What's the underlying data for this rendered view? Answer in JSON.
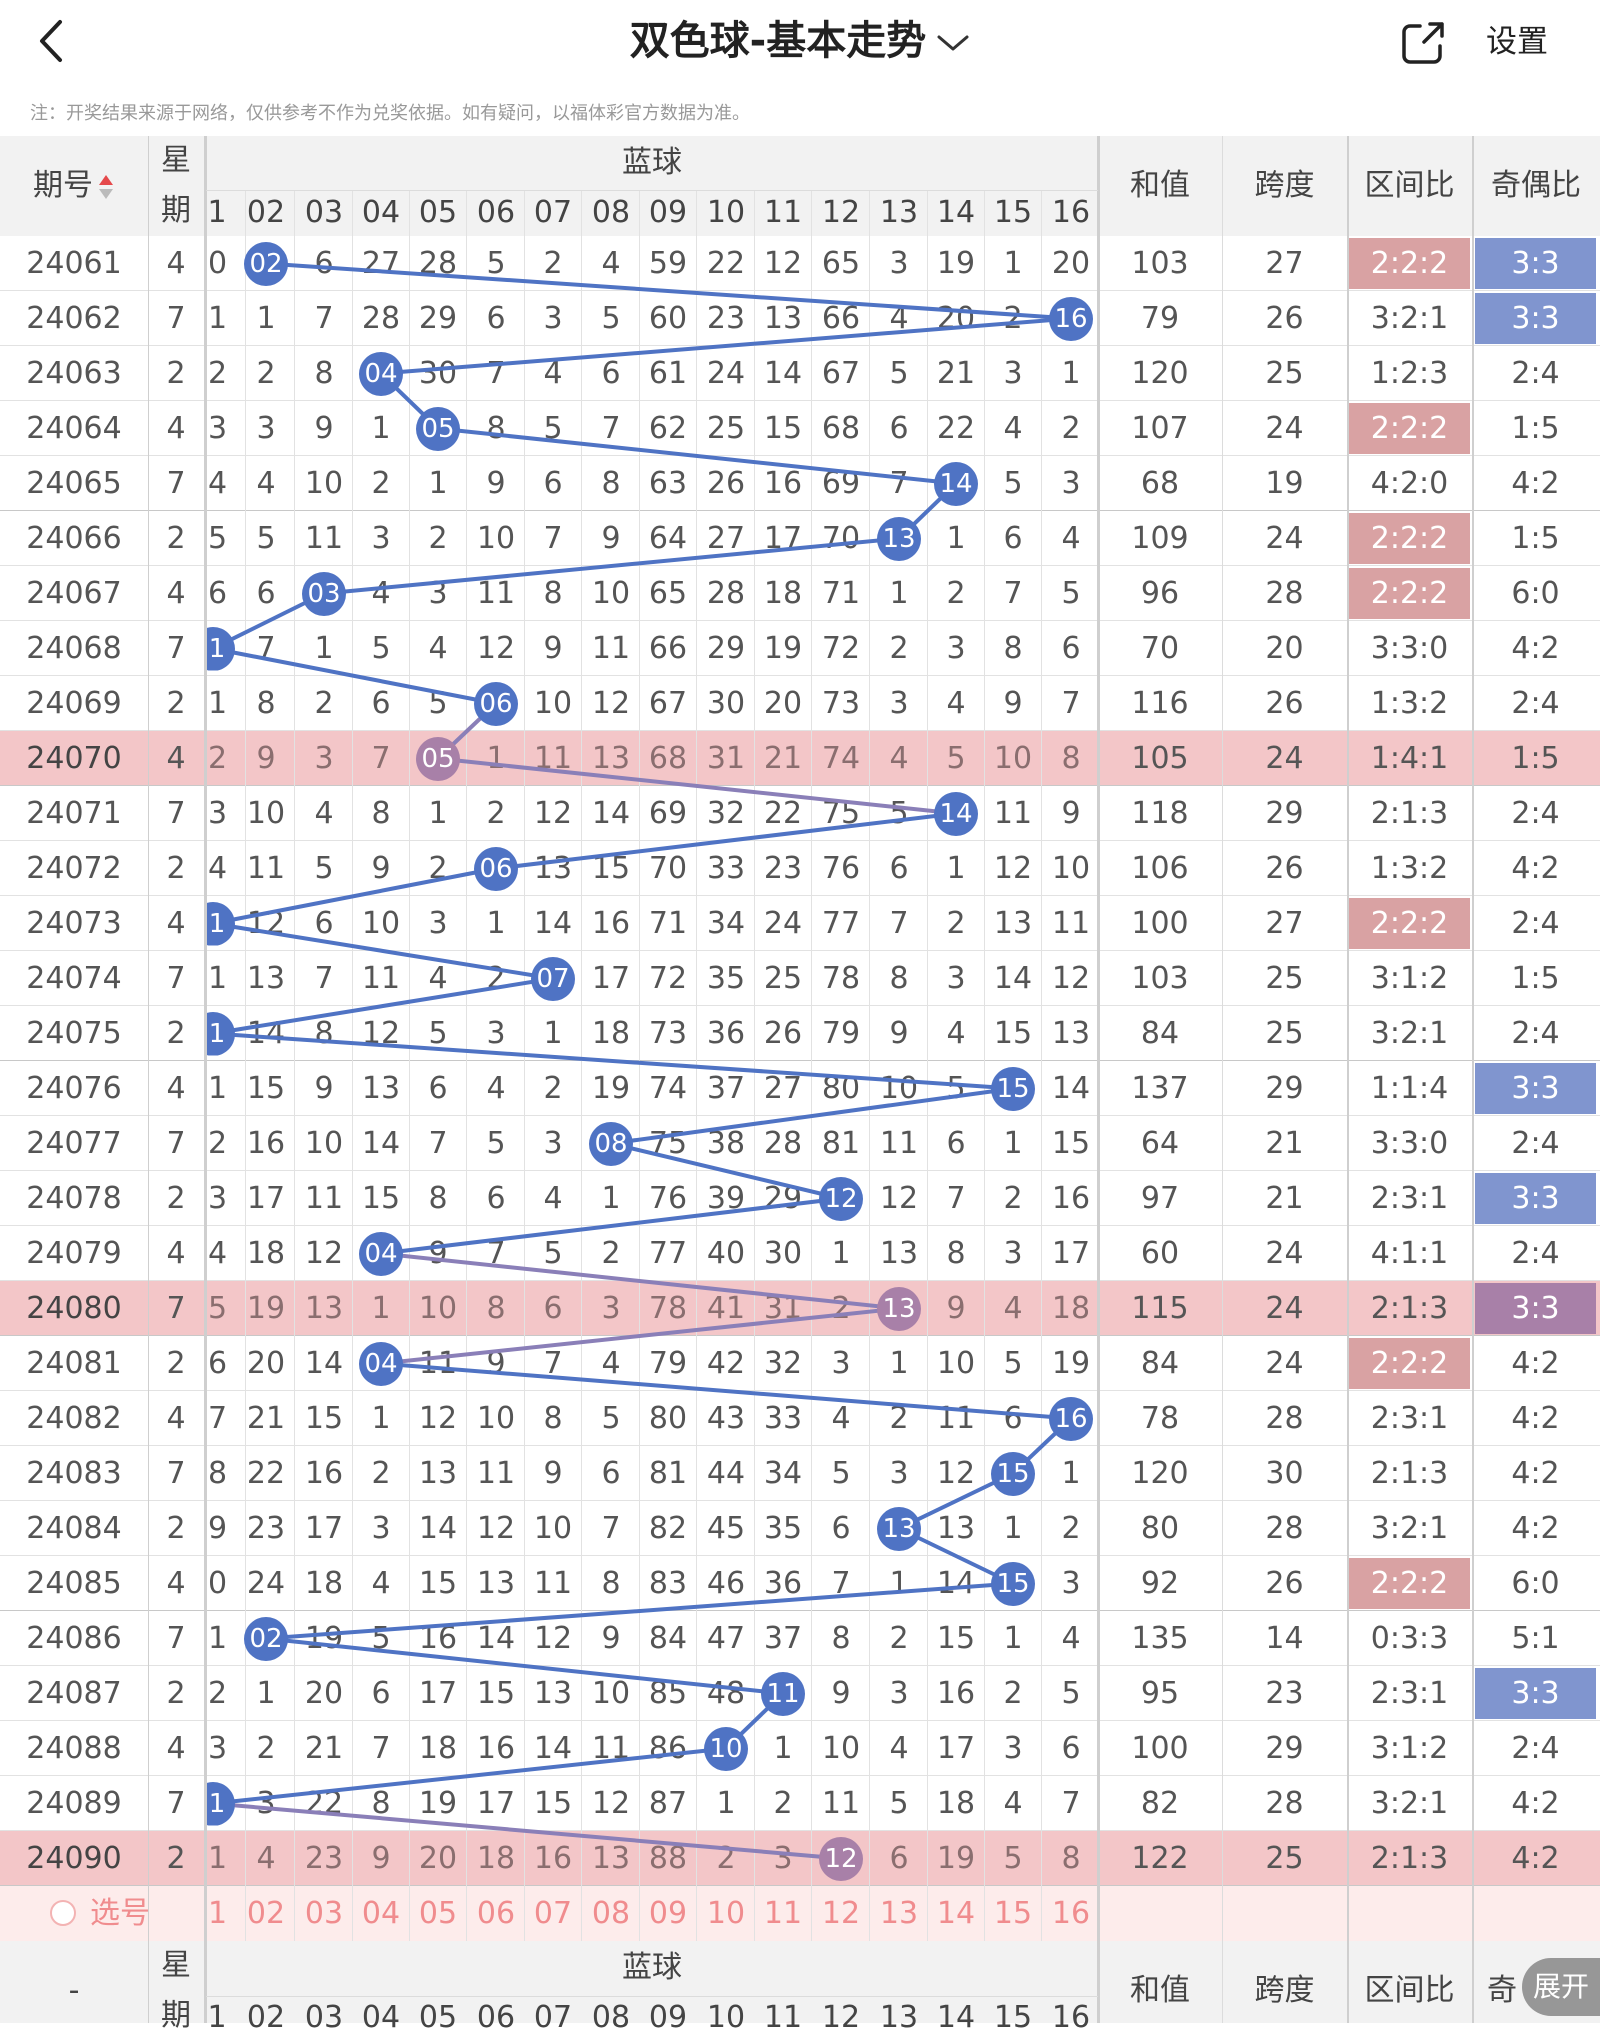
{
  "header": {
    "title": "双色球-基本走势",
    "settings_label": "设置",
    "icons": [
      "back-icon",
      "chevron-down-icon",
      "share-icon"
    ]
  },
  "note": "注：开奖结果来源于网络，仅供参考不作为兑奖依据。如有疑问，以福体彩官方数据为准。",
  "table": {
    "headers": {
      "issue": "期号",
      "week_top": "星",
      "week_bottom": "期",
      "blue": "蓝球",
      "sum": "和值",
      "span": "跨度",
      "zone": "区间比",
      "odd_even": "奇偶比",
      "select": "选号",
      "footer_issue": "-",
      "footer_oe": "奇"
    },
    "columns": [
      "1",
      "02",
      "03",
      "04",
      "05",
      "06",
      "07",
      "08",
      "09",
      "10",
      "11",
      "12",
      "13",
      "14",
      "15",
      "16"
    ],
    "rows": [
      {
        "issue": "24061",
        "week": "4",
        "cells": [
          "0",
          "02",
          "6",
          "27",
          "28",
          "5",
          "2",
          "4",
          "59",
          "22",
          "12",
          "65",
          "3",
          "19",
          "1",
          "20"
        ],
        "ball": 2,
        "sum": "103",
        "span": "27",
        "zone": "2:2:2",
        "oe": "3:3"
      },
      {
        "issue": "24062",
        "week": "7",
        "cells": [
          "1",
          "1",
          "7",
          "28",
          "29",
          "6",
          "3",
          "5",
          "60",
          "23",
          "13",
          "66",
          "4",
          "20",
          "2",
          "16"
        ],
        "ball": 16,
        "sum": "79",
        "span": "26",
        "zone": "3:2:1",
        "oe": "3:3"
      },
      {
        "issue": "24063",
        "week": "2",
        "cells": [
          "2",
          "2",
          "8",
          "04",
          "30",
          "7",
          "4",
          "6",
          "61",
          "24",
          "14",
          "67",
          "5",
          "21",
          "3",
          "1"
        ],
        "ball": 4,
        "sum": "120",
        "span": "25",
        "zone": "1:2:3",
        "oe": "2:4"
      },
      {
        "issue": "24064",
        "week": "4",
        "cells": [
          "3",
          "3",
          "9",
          "1",
          "05",
          "8",
          "5",
          "7",
          "62",
          "25",
          "15",
          "68",
          "6",
          "22",
          "4",
          "2"
        ],
        "ball": 5,
        "sum": "107",
        "span": "24",
        "zone": "2:2:2",
        "oe": "1:5"
      },
      {
        "issue": "24065",
        "week": "7",
        "cells": [
          "4",
          "4",
          "10",
          "2",
          "1",
          "9",
          "6",
          "8",
          "63",
          "26",
          "16",
          "69",
          "7",
          "14",
          "5",
          "3"
        ],
        "ball": 14,
        "sum": "68",
        "span": "19",
        "zone": "4:2:0",
        "oe": "4:2"
      },
      {
        "issue": "24066",
        "week": "2",
        "cells": [
          "5",
          "5",
          "11",
          "3",
          "2",
          "10",
          "7",
          "9",
          "64",
          "27",
          "17",
          "70",
          "13",
          "1",
          "6",
          "4"
        ],
        "ball": 13,
        "sum": "109",
        "span": "24",
        "zone": "2:2:2",
        "oe": "1:5"
      },
      {
        "issue": "24067",
        "week": "4",
        "cells": [
          "6",
          "6",
          "03",
          "4",
          "3",
          "11",
          "8",
          "10",
          "65",
          "28",
          "18",
          "71",
          "1",
          "2",
          "7",
          "5"
        ],
        "ball": 3,
        "sum": "96",
        "span": "28",
        "zone": "2:2:2",
        "oe": "6:0"
      },
      {
        "issue": "24068",
        "week": "7",
        "cells": [
          "1",
          "7",
          "1",
          "5",
          "4",
          "12",
          "9",
          "11",
          "66",
          "29",
          "19",
          "72",
          "2",
          "3",
          "8",
          "6"
        ],
        "ball": 1,
        "sum": "70",
        "span": "20",
        "zone": "3:3:0",
        "oe": "4:2"
      },
      {
        "issue": "24069",
        "week": "2",
        "cells": [
          "1",
          "8",
          "2",
          "6",
          "5",
          "06",
          "10",
          "12",
          "67",
          "30",
          "20",
          "73",
          "3",
          "4",
          "9",
          "7"
        ],
        "ball": 6,
        "sum": "116",
        "span": "26",
        "zone": "1:3:2",
        "oe": "2:4"
      },
      {
        "issue": "24070",
        "week": "4",
        "cells": [
          "2",
          "9",
          "3",
          "7",
          "05",
          "1",
          "11",
          "13",
          "68",
          "31",
          "21",
          "74",
          "4",
          "5",
          "10",
          "8"
        ],
        "ball": 5,
        "sum": "105",
        "span": "24",
        "zone": "1:4:1",
        "oe": "1:5",
        "hl": true
      },
      {
        "issue": "24071",
        "week": "7",
        "cells": [
          "3",
          "10",
          "4",
          "8",
          "1",
          "2",
          "12",
          "14",
          "69",
          "32",
          "22",
          "75",
          "5",
          "14",
          "11",
          "9"
        ],
        "ball": 14,
        "sum": "118",
        "span": "29",
        "zone": "2:1:3",
        "oe": "2:4"
      },
      {
        "issue": "24072",
        "week": "2",
        "cells": [
          "4",
          "11",
          "5",
          "9",
          "2",
          "06",
          "13",
          "15",
          "70",
          "33",
          "23",
          "76",
          "6",
          "1",
          "12",
          "10"
        ],
        "ball": 6,
        "sum": "106",
        "span": "26",
        "zone": "1:3:2",
        "oe": "4:2"
      },
      {
        "issue": "24073",
        "week": "4",
        "cells": [
          "1",
          "12",
          "6",
          "10",
          "3",
          "1",
          "14",
          "16",
          "71",
          "34",
          "24",
          "77",
          "7",
          "2",
          "13",
          "11"
        ],
        "ball": 1,
        "sum": "100",
        "span": "27",
        "zone": "2:2:2",
        "oe": "2:4"
      },
      {
        "issue": "24074",
        "week": "7",
        "cells": [
          "1",
          "13",
          "7",
          "11",
          "4",
          "2",
          "07",
          "17",
          "72",
          "35",
          "25",
          "78",
          "8",
          "3",
          "14",
          "12"
        ],
        "ball": 7,
        "sum": "103",
        "span": "25",
        "zone": "3:1:2",
        "oe": "1:5"
      },
      {
        "issue": "24075",
        "week": "2",
        "cells": [
          "1",
          "14",
          "8",
          "12",
          "5",
          "3",
          "1",
          "18",
          "73",
          "36",
          "26",
          "79",
          "9",
          "4",
          "15",
          "13"
        ],
        "ball": 1,
        "sum": "84",
        "span": "25",
        "zone": "3:2:1",
        "oe": "2:4"
      },
      {
        "issue": "24076",
        "week": "4",
        "cells": [
          "1",
          "15",
          "9",
          "13",
          "6",
          "4",
          "2",
          "19",
          "74",
          "37",
          "27",
          "80",
          "10",
          "5",
          "15",
          "14"
        ],
        "ball": 15,
        "sum": "137",
        "span": "29",
        "zone": "1:1:4",
        "oe": "3:3"
      },
      {
        "issue": "24077",
        "week": "7",
        "cells": [
          "2",
          "16",
          "10",
          "14",
          "7",
          "5",
          "3",
          "08",
          "75",
          "38",
          "28",
          "81",
          "11",
          "6",
          "1",
          "15"
        ],
        "ball": 8,
        "sum": "64",
        "span": "21",
        "zone": "3:3:0",
        "oe": "2:4"
      },
      {
        "issue": "24078",
        "week": "2",
        "cells": [
          "3",
          "17",
          "11",
          "15",
          "8",
          "6",
          "4",
          "1",
          "76",
          "39",
          "29",
          "12",
          "12",
          "7",
          "2",
          "16"
        ],
        "ball": 12,
        "sum": "97",
        "span": "21",
        "zone": "2:3:1",
        "oe": "3:3"
      },
      {
        "issue": "24079",
        "week": "4",
        "cells": [
          "4",
          "18",
          "12",
          "04",
          "9",
          "7",
          "5",
          "2",
          "77",
          "40",
          "30",
          "1",
          "13",
          "8",
          "3",
          "17"
        ],
        "ball": 4,
        "sum": "60",
        "span": "24",
        "zone": "4:1:1",
        "oe": "2:4"
      },
      {
        "issue": "24080",
        "week": "7",
        "cells": [
          "5",
          "19",
          "13",
          "1",
          "10",
          "8",
          "6",
          "3",
          "78",
          "41",
          "31",
          "2",
          "13",
          "9",
          "4",
          "18"
        ],
        "ball": 13,
        "sum": "115",
        "span": "24",
        "zone": "2:1:3",
        "oe": "3:3",
        "hl": true
      },
      {
        "issue": "24081",
        "week": "2",
        "cells": [
          "6",
          "20",
          "14",
          "04",
          "11",
          "9",
          "7",
          "4",
          "79",
          "42",
          "32",
          "3",
          "1",
          "10",
          "5",
          "19"
        ],
        "ball": 4,
        "sum": "84",
        "span": "24",
        "zone": "2:2:2",
        "oe": "4:2"
      },
      {
        "issue": "24082",
        "week": "4",
        "cells": [
          "7",
          "21",
          "15",
          "1",
          "12",
          "10",
          "8",
          "5",
          "80",
          "43",
          "33",
          "4",
          "2",
          "11",
          "6",
          "16"
        ],
        "ball": 16,
        "sum": "78",
        "span": "28",
        "zone": "2:3:1",
        "oe": "4:2"
      },
      {
        "issue": "24083",
        "week": "7",
        "cells": [
          "8",
          "22",
          "16",
          "2",
          "13",
          "11",
          "9",
          "6",
          "81",
          "44",
          "34",
          "5",
          "3",
          "12",
          "15",
          "1"
        ],
        "ball": 15,
        "sum": "120",
        "span": "30",
        "zone": "2:1:3",
        "oe": "4:2"
      },
      {
        "issue": "24084",
        "week": "2",
        "cells": [
          "9",
          "23",
          "17",
          "3",
          "14",
          "12",
          "10",
          "7",
          "82",
          "45",
          "35",
          "6",
          "13",
          "13",
          "1",
          "2"
        ],
        "ball": 13,
        "sum": "80",
        "span": "28",
        "zone": "3:2:1",
        "oe": "4:2"
      },
      {
        "issue": "24085",
        "week": "4",
        "cells": [
          "0",
          "24",
          "18",
          "4",
          "15",
          "13",
          "11",
          "8",
          "83",
          "46",
          "36",
          "7",
          "1",
          "14",
          "15",
          "3"
        ],
        "ball": 15,
        "sum": "92",
        "span": "26",
        "zone": "2:2:2",
        "oe": "6:0"
      },
      {
        "issue": "24086",
        "week": "7",
        "cells": [
          "1",
          "02",
          "19",
          "5",
          "16",
          "14",
          "12",
          "9",
          "84",
          "47",
          "37",
          "8",
          "2",
          "15",
          "1",
          "4"
        ],
        "ball": 2,
        "sum": "135",
        "span": "14",
        "zone": "0:3:3",
        "oe": "5:1"
      },
      {
        "issue": "24087",
        "week": "2",
        "cells": [
          "2",
          "1",
          "20",
          "6",
          "17",
          "15",
          "13",
          "10",
          "85",
          "48",
          "11",
          "9",
          "3",
          "16",
          "2",
          "5"
        ],
        "ball": 11,
        "sum": "95",
        "span": "23",
        "zone": "2:3:1",
        "oe": "3:3"
      },
      {
        "issue": "24088",
        "week": "4",
        "cells": [
          "3",
          "2",
          "21",
          "7",
          "18",
          "16",
          "14",
          "11",
          "86",
          "10",
          "1",
          "10",
          "4",
          "17",
          "3",
          "6"
        ],
        "ball": 10,
        "sum": "100",
        "span": "29",
        "zone": "3:1:2",
        "oe": "2:4"
      },
      {
        "issue": "24089",
        "week": "7",
        "cells": [
          "1",
          "3",
          "22",
          "8",
          "19",
          "17",
          "15",
          "12",
          "87",
          "1",
          "2",
          "11",
          "5",
          "18",
          "4",
          "7"
        ],
        "ball": 1,
        "sum": "82",
        "span": "28",
        "zone": "3:2:1",
        "oe": "4:2"
      },
      {
        "issue": "24090",
        "week": "2",
        "cells": [
          "1",
          "4",
          "23",
          "9",
          "20",
          "18",
          "16",
          "13",
          "88",
          "2",
          "3",
          "12",
          "6",
          "19",
          "5",
          "8"
        ],
        "ball": 12,
        "sum": "122",
        "span": "25",
        "zone": "2:1:3",
        "oe": "4:2",
        "hl": true
      }
    ]
  },
  "expand_label": "展开",
  "colors": {
    "ball": "#4f73c4",
    "ball_highlight": "#a880a8",
    "zone_red": "#d9a2a3",
    "oe_blue": "#8095cf",
    "row_highlight": "#f3c6c8",
    "select_row": "#fdeceb"
  }
}
